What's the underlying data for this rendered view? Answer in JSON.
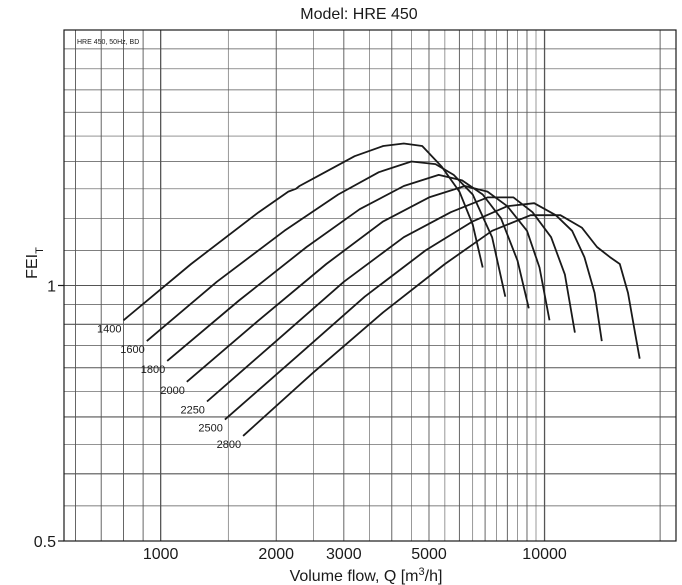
{
  "chart_data": {
    "type": "line",
    "title": "Model: HRE 450",
    "note": "HRE 450, 50Hz, BD",
    "xlabel_main": "Volume flow, Q [m",
    "xlabel_sup": "3",
    "xlabel_end": "/h]",
    "ylabel_main": "FEI",
    "ylabel_sub": "T",
    "x_scale": "log",
    "y_scale": "log",
    "xlim": [
      560,
      22000
    ],
    "ylim": [
      0.5,
      2.0
    ],
    "grid": "on",
    "x_ticks": [
      {
        "value": 1000,
        "label": "1000"
      },
      {
        "value": 2000,
        "label": "2000"
      },
      {
        "value": 3000,
        "label": "3000"
      },
      {
        "value": 5000,
        "label": "5000"
      },
      {
        "value": 10000,
        "label": "10000"
      }
    ],
    "y_ticks": [
      {
        "value": 0.5,
        "label": "0.5"
      },
      {
        "value": 1.0,
        "label": "1"
      }
    ],
    "colors": {
      "curve": "#1a1a1a",
      "grid": "#555555",
      "axis": "#1a1a1a"
    },
    "series": [
      {
        "name": "1400",
        "points": [
          [
            800,
            0.91
          ],
          [
            1200,
            1.06
          ],
          [
            1800,
            1.22
          ],
          [
            2150,
            1.29
          ],
          [
            2250,
            1.3
          ],
          [
            2300,
            1.31
          ],
          [
            2600,
            1.35
          ],
          [
            3200,
            1.42
          ],
          [
            3800,
            1.46
          ],
          [
            4300,
            1.47
          ],
          [
            4800,
            1.46
          ],
          [
            5400,
            1.38
          ],
          [
            6000,
            1.29
          ],
          [
            6500,
            1.18
          ],
          [
            6900,
            1.05
          ]
        ]
      },
      {
        "name": "1600",
        "points": [
          [
            920,
            0.86
          ],
          [
            1400,
            1.01
          ],
          [
            2100,
            1.16
          ],
          [
            2900,
            1.28
          ],
          [
            3700,
            1.36
          ],
          [
            4500,
            1.4
          ],
          [
            5200,
            1.39
          ],
          [
            5800,
            1.35
          ],
          [
            6500,
            1.28
          ],
          [
            7300,
            1.14
          ],
          [
            7900,
            0.97
          ]
        ]
      },
      {
        "name": "1800",
        "points": [
          [
            1040,
            0.815
          ],
          [
            1600,
            0.96
          ],
          [
            2400,
            1.11
          ],
          [
            3300,
            1.23
          ],
          [
            4300,
            1.31
          ],
          [
            5300,
            1.35
          ],
          [
            6100,
            1.33
          ],
          [
            6900,
            1.28
          ],
          [
            7700,
            1.2
          ],
          [
            8500,
            1.07
          ],
          [
            9100,
            0.94
          ]
        ]
      },
      {
        "name": "2000",
        "points": [
          [
            1170,
            0.77
          ],
          [
            1800,
            0.91
          ],
          [
            2700,
            1.06
          ],
          [
            3800,
            1.19
          ],
          [
            5000,
            1.27
          ],
          [
            6200,
            1.31
          ],
          [
            7100,
            1.29
          ],
          [
            8000,
            1.24
          ],
          [
            9000,
            1.16
          ],
          [
            9700,
            1.05
          ],
          [
            10300,
            0.91
          ]
        ]
      },
      {
        "name": "2250",
        "points": [
          [
            1320,
            0.73
          ],
          [
            2000,
            0.86
          ],
          [
            3000,
            1.01
          ],
          [
            4300,
            1.14
          ],
          [
            5700,
            1.22
          ],
          [
            7100,
            1.27
          ],
          [
            8300,
            1.27
          ],
          [
            9300,
            1.22
          ],
          [
            10400,
            1.14
          ],
          [
            11300,
            1.03
          ],
          [
            12000,
            0.88
          ]
        ]
      },
      {
        "name": "2500",
        "points": [
          [
            1470,
            0.695
          ],
          [
            2300,
            0.83
          ],
          [
            3400,
            0.97
          ],
          [
            4900,
            1.1
          ],
          [
            6500,
            1.19
          ],
          [
            8000,
            1.24
          ],
          [
            9400,
            1.25
          ],
          [
            10700,
            1.21
          ],
          [
            11800,
            1.16
          ],
          [
            12700,
            1.08
          ],
          [
            13500,
            0.98
          ],
          [
            14100,
            0.86
          ]
        ]
      },
      {
        "name": "2800",
        "points": [
          [
            1640,
            0.665
          ],
          [
            2500,
            0.79
          ],
          [
            3800,
            0.93
          ],
          [
            5500,
            1.06
          ],
          [
            7300,
            1.16
          ],
          [
            9200,
            1.21
          ],
          [
            11000,
            1.21
          ],
          [
            12500,
            1.17
          ],
          [
            13700,
            1.11
          ],
          [
            14800,
            1.08
          ],
          [
            15700,
            1.06
          ],
          [
            16500,
            0.98
          ],
          [
            17200,
            0.88
          ],
          [
            17700,
            0.82
          ]
        ]
      }
    ]
  }
}
